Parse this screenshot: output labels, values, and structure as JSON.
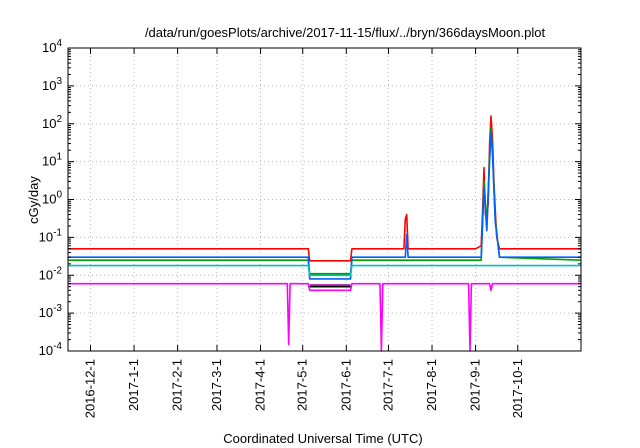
{
  "chart_data": {
    "type": "line",
    "title": "/data/run/goesPlots/archive/2017-11-15/flux/../bryn/366daysMoon.plot",
    "xlabel": "Coordinated Universal Time (UTC)",
    "ylabel": "cGy/day",
    "yscale": "log",
    "ylim": [
      0.0001,
      10000
    ],
    "xlim": [
      "2016-11-15",
      "2017-11-15"
    ],
    "grid": true,
    "x_ticks": [
      "2016-12-1",
      "2017-1-1",
      "2017-2-1",
      "2017-3-1",
      "2017-4-1",
      "2017-5-1",
      "2017-6-1",
      "2017-7-1",
      "2017-8-1",
      "2017-9-1",
      "2017-10-1"
    ],
    "y_ticks": [
      {
        "base": "10",
        "exp": "-4",
        "value": 0.0001
      },
      {
        "base": "10",
        "exp": "-3",
        "value": 0.001
      },
      {
        "base": "10",
        "exp": "-2",
        "value": 0.01
      },
      {
        "base": "10",
        "exp": "-1",
        "value": 0.1
      },
      {
        "base": "10",
        "exp": "0",
        "value": 1
      },
      {
        "base": "10",
        "exp": "1",
        "value": 10
      },
      {
        "base": "10",
        "exp": "2",
        "value": 100
      },
      {
        "base": "10",
        "exp": "3",
        "value": 1000
      },
      {
        "base": "10",
        "exp": "4",
        "value": 10000
      }
    ],
    "series": [
      {
        "color": "#ff0000",
        "x": [
          "2016-11-15",
          "2017-5-5",
          "2017-5-6",
          "2017-6-4",
          "2017-6-5",
          "2017-6-23",
          "2017-6-24",
          "2017-7-12",
          "2017-7-13",
          "2017-7-14",
          "2017-7-15",
          "2017-9-1",
          "2017-9-5",
          "2017-9-6",
          "2017-9-7",
          "2017-9-8",
          "2017-9-9",
          "2017-9-10",
          "2017-9-11",
          "2017-9-12",
          "2017-9-13",
          "2017-9-14",
          "2017-9-15",
          "2017-9-16",
          "2017-9-18",
          "2017-11-15"
        ],
        "y": [
          0.05,
          0.05,
          0.024,
          0.024,
          0.05,
          0.05,
          0.05,
          0.05,
          0.3,
          0.4,
          0.05,
          0.05,
          0.06,
          0.5,
          7,
          0.4,
          0.3,
          0.8,
          30,
          160,
          40,
          3,
          0.5,
          0.1,
          0.05,
          0.05
        ]
      },
      {
        "color": "#00a000",
        "x": [
          "2016-11-15",
          "2017-5-5",
          "2017-5-6",
          "2017-6-4",
          "2017-6-5",
          "2017-9-5",
          "2017-9-7",
          "2017-9-9",
          "2017-9-11",
          "2017-9-12",
          "2017-9-13",
          "2017-9-15",
          "2017-9-18",
          "2017-11-15"
        ],
        "y": [
          0.025,
          0.025,
          0.011,
          0.011,
          0.025,
          0.025,
          3,
          0.2,
          15,
          80,
          20,
          0.3,
          0.03,
          0.025
        ]
      },
      {
        "color": "#0060ff",
        "x": [
          "2016-11-15",
          "2017-5-5",
          "2017-5-6",
          "2017-6-4",
          "2017-6-5",
          "2017-7-13",
          "2017-7-14",
          "2017-7-15",
          "2017-9-5",
          "2017-9-7",
          "2017-9-9",
          "2017-9-11",
          "2017-9-12",
          "2017-9-13",
          "2017-9-15",
          "2017-9-18",
          "2017-11-15"
        ],
        "y": [
          0.03,
          0.03,
          0.008,
          0.008,
          0.03,
          0.03,
          0.12,
          0.03,
          0.03,
          2,
          0.15,
          10,
          60,
          15,
          0.25,
          0.03,
          0.03
        ]
      },
      {
        "color": "#ff00ff",
        "x": [
          "2016-11-15",
          "2017-4-20",
          "2017-4-21",
          "2017-4-22",
          "2017-5-5",
          "2017-5-6",
          "2017-6-4",
          "2017-6-5",
          "2017-6-25",
          "2017-6-26",
          "2017-6-27",
          "2017-8-27",
          "2017-8-28",
          "2017-8-29",
          "2017-9-11",
          "2017-9-12",
          "2017-9-13",
          "2017-11-15"
        ],
        "y": [
          0.006,
          0.006,
          0.00015,
          0.006,
          0.006,
          0.004,
          0.004,
          0.006,
          0.006,
          0.0001,
          0.006,
          0.006,
          0.0001,
          0.006,
          0.006,
          0.004,
          0.006,
          0.006
        ]
      },
      {
        "color": "#00c0c0",
        "x": [
          "2016-11-15",
          "2017-5-5",
          "2017-5-6",
          "2017-6-4",
          "2017-6-5",
          "2017-11-15"
        ],
        "y": [
          0.018,
          0.018,
          0.01,
          0.01,
          0.018,
          0.018
        ]
      },
      {
        "color": "#000000",
        "x": [
          "2017-5-6",
          "2017-6-4"
        ],
        "y": [
          0.005,
          0.005
        ]
      },
      {
        "color": "#a000a0",
        "x": [
          "2017-5-6",
          "2017-6-4"
        ],
        "y": [
          0.0055,
          0.0055
        ]
      }
    ]
  }
}
